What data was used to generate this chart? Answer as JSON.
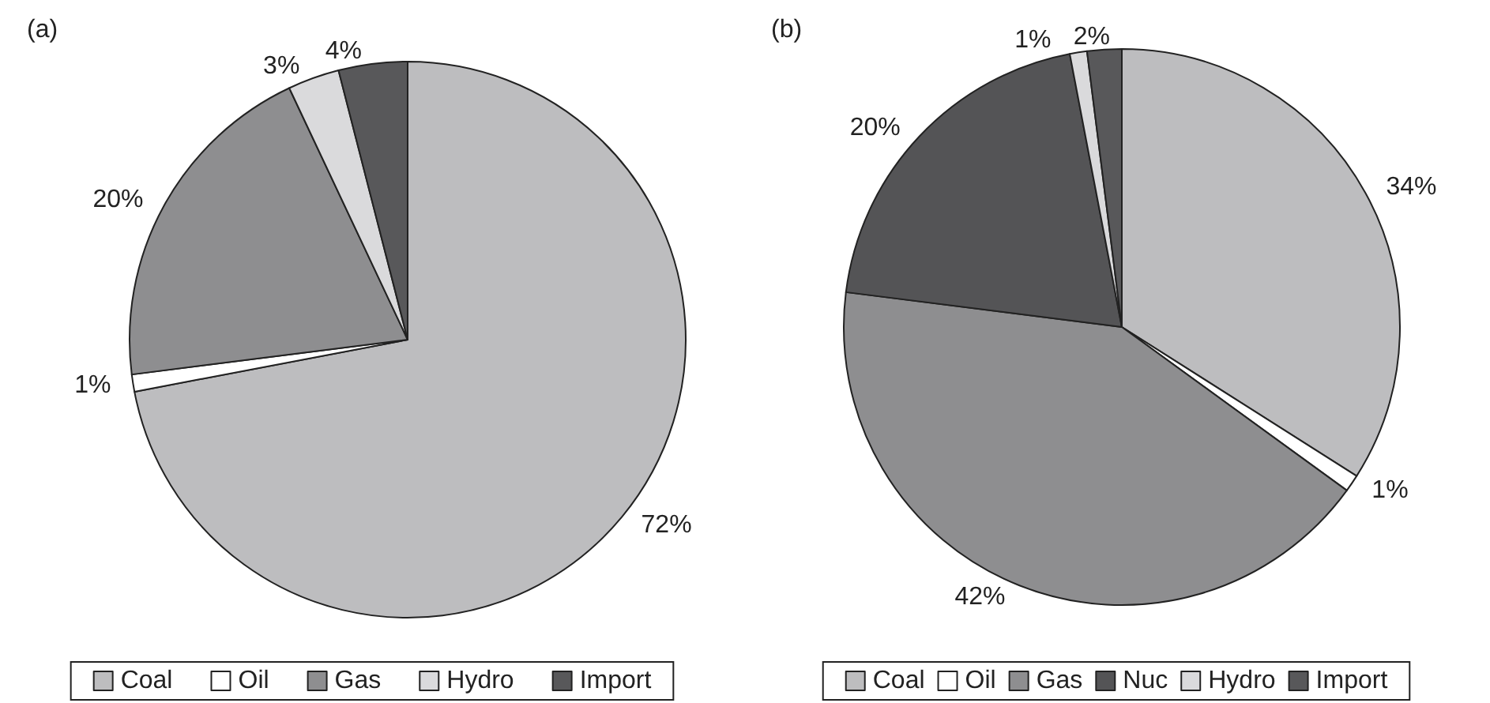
{
  "chart_data": [
    {
      "type": "pie",
      "title": "(a)",
      "categories": [
        "Coal",
        "Oil",
        "Gas",
        "Hydro",
        "Import"
      ],
      "values": [
        72,
        1,
        20,
        3,
        4
      ],
      "value_labels": [
        "72%",
        "1%",
        "20%",
        "3%",
        "4%"
      ],
      "colors": [
        "#bdbdbf",
        "#ffffff",
        "#8e8e90",
        "#dadadc",
        "#58585a"
      ],
      "legend": "bottom"
    },
    {
      "type": "pie",
      "title": "(b)",
      "categories": [
        "Coal",
        "Oil",
        "Gas",
        "Nuc",
        "Hydro",
        "Import"
      ],
      "values": [
        34,
        1,
        42,
        20,
        1,
        2
      ],
      "value_labels": [
        "34%",
        "1%",
        "42%",
        "20%",
        "1%",
        "2%"
      ],
      "colors": [
        "#bdbdbf",
        "#ffffff",
        "#8e8e90",
        "#545456",
        "#dadadc",
        "#58585a"
      ],
      "legend": "bottom"
    }
  ]
}
